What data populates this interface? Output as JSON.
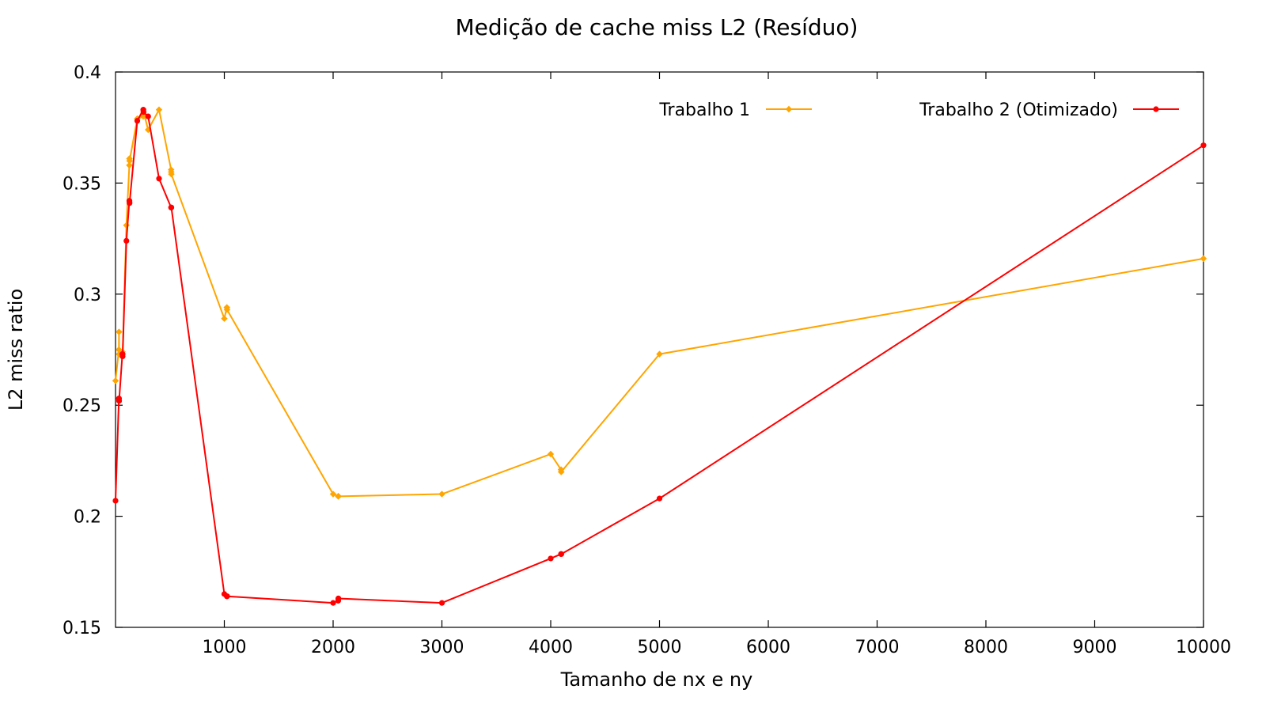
{
  "chart_data": {
    "type": "line",
    "title": "Medição de cache miss L2 (Resíduo)",
    "xlabel": "Tamanho de nx e ny",
    "ylabel": "L2 miss ratio",
    "xlim": [
      0,
      10000
    ],
    "ylim": [
      0.15,
      0.4
    ],
    "xticks": [
      1000,
      2000,
      3000,
      4000,
      5000,
      6000,
      7000,
      8000,
      9000,
      10000
    ],
    "yticks": [
      0.15,
      0.2,
      0.25,
      0.3,
      0.35,
      0.4
    ],
    "xtick_labels": [
      "1000",
      "2000",
      "3000",
      "4000",
      "5000",
      "6000",
      "7000",
      "8000",
      "9000",
      "10000"
    ],
    "ytick_labels": [
      "0.15",
      "0.2",
      "0.25",
      "0.3",
      "0.35",
      "0.4"
    ],
    "grid": false,
    "legend_position": "top-right",
    "series": [
      {
        "name": "Trabalho 1",
        "color": "#ffa500",
        "marker": "diamond",
        "points": [
          [
            0,
            0.261
          ],
          [
            31,
            0.275
          ],
          [
            32,
            0.283
          ],
          [
            33,
            0.273
          ],
          [
            63,
            0.273
          ],
          [
            64,
            0.274
          ],
          [
            65,
            0.273
          ],
          [
            100,
            0.331
          ],
          [
            127,
            0.358
          ],
          [
            128,
            0.361
          ],
          [
            129,
            0.36
          ],
          [
            200,
            0.379
          ],
          [
            255,
            0.38
          ],
          [
            256,
            0.381
          ],
          [
            257,
            0.382
          ],
          [
            300,
            0.374
          ],
          [
            400,
            0.383
          ],
          [
            511,
            0.356
          ],
          [
            512,
            0.355
          ],
          [
            513,
            0.354
          ],
          [
            1000,
            0.289
          ],
          [
            1023,
            0.294
          ],
          [
            1024,
            0.294
          ],
          [
            1025,
            0.293
          ],
          [
            2000,
            0.21
          ],
          [
            2047,
            0.209
          ],
          [
            2048,
            0.209
          ],
          [
            2049,
            0.209
          ],
          [
            3000,
            0.21
          ],
          [
            4000,
            0.228
          ],
          [
            4095,
            0.221
          ],
          [
            4096,
            0.22
          ],
          [
            4097,
            0.22
          ],
          [
            5000,
            0.273
          ],
          [
            10000,
            0.316
          ]
        ]
      },
      {
        "name": "Trabalho 2 (Otimizado)",
        "color": "#ff0000",
        "marker": "circle",
        "points": [
          [
            0,
            0.207
          ],
          [
            31,
            0.253
          ],
          [
            32,
            0.253
          ],
          [
            33,
            0.252
          ],
          [
            63,
            0.273
          ],
          [
            64,
            0.273
          ],
          [
            65,
            0.272
          ],
          [
            100,
            0.324
          ],
          [
            127,
            0.342
          ],
          [
            128,
            0.342
          ],
          [
            129,
            0.341
          ],
          [
            200,
            0.378
          ],
          [
            255,
            0.383
          ],
          [
            256,
            0.383
          ],
          [
            257,
            0.382
          ],
          [
            300,
            0.38
          ],
          [
            400,
            0.352
          ],
          [
            511,
            0.339
          ],
          [
            512,
            0.339
          ],
          [
            513,
            0.339
          ],
          [
            1000,
            0.165
          ],
          [
            1023,
            0.164
          ],
          [
            1024,
            0.164
          ],
          [
            1025,
            0.164
          ],
          [
            2000,
            0.161
          ],
          [
            2047,
            0.162
          ],
          [
            2048,
            0.163
          ],
          [
            2049,
            0.163
          ],
          [
            3000,
            0.161
          ],
          [
            4000,
            0.181
          ],
          [
            4095,
            0.183
          ],
          [
            4096,
            0.183
          ],
          [
            4097,
            0.183
          ],
          [
            5000,
            0.208
          ],
          [
            10000,
            0.367
          ]
        ]
      }
    ]
  }
}
